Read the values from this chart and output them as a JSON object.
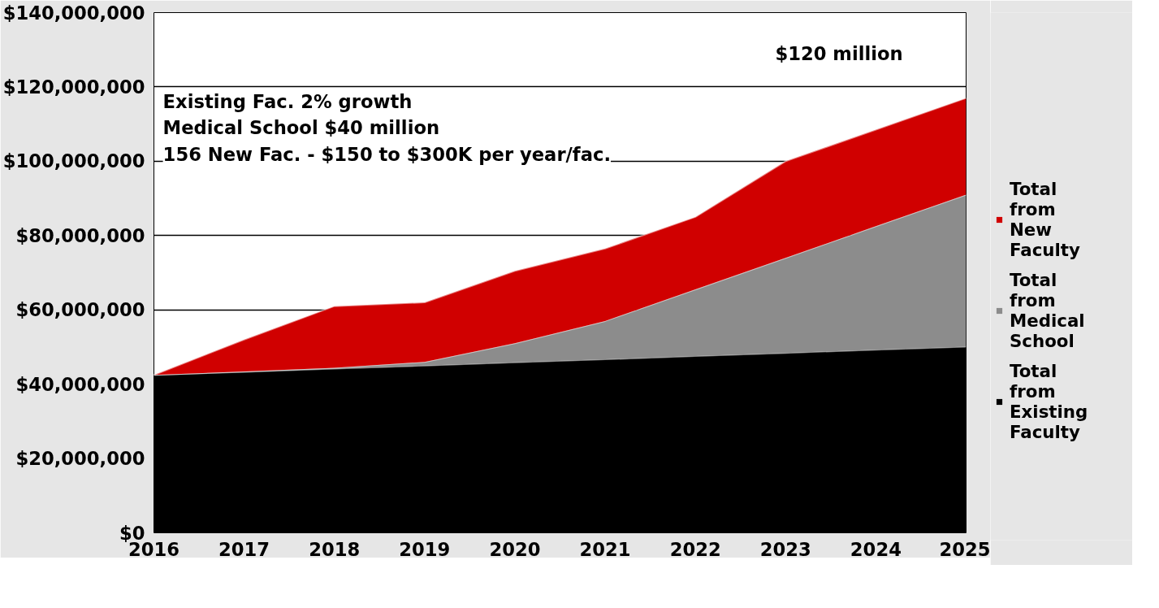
{
  "chart_data": {
    "type": "area",
    "stacked": true,
    "x": [
      2016,
      2017,
      2018,
      2019,
      2020,
      2021,
      2022,
      2023,
      2024,
      2025
    ],
    "series": [
      {
        "name": "Total from Existing Faculty",
        "color": "#000000",
        "values": [
          42500000,
          43300000,
          44200000,
          45000000,
          45900000,
          46700000,
          47600000,
          48400000,
          49300000,
          50100000
        ]
      },
      {
        "name": "Total from Medical School",
        "color": "#8c8c8c",
        "values": [
          0,
          100000,
          200000,
          1000000,
          5100000,
          10300000,
          17900000,
          25600000,
          33200000,
          40900000
        ]
      },
      {
        "name": "Total from New Faculty",
        "color": "#d00000",
        "values": [
          0,
          8600000,
          16600000,
          16000000,
          19500000,
          19500000,
          19500000,
          26000000,
          26000000,
          26000000
        ]
      }
    ],
    "xlim": [
      2016,
      2025
    ],
    "xticks": [
      2016,
      2017,
      2018,
      2019,
      2020,
      2021,
      2022,
      2023,
      2024,
      2025
    ],
    "ylim": [
      0,
      140000000
    ],
    "yticks": [
      {
        "value": 0,
        "label": "$0"
      },
      {
        "value": 20000000,
        "label": "$20,000,000"
      },
      {
        "value": 40000000,
        "label": "$40,000,000"
      },
      {
        "value": 60000000,
        "label": "$60,000,000"
      },
      {
        "value": 80000000,
        "label": "$80,000,000"
      },
      {
        "value": 100000000,
        "label": "$100,000,000"
      },
      {
        "value": 120000000,
        "label": "$120,000,000"
      },
      {
        "value": 140000000,
        "label": "$140,000,000"
      }
    ],
    "grid": "y",
    "legend": "right",
    "annotations": [
      "Existing Fac. 2% growth\nMedical School $40 million\n156 New Fac. - $150 to $300K per year/fac.",
      "$120 million"
    ]
  }
}
